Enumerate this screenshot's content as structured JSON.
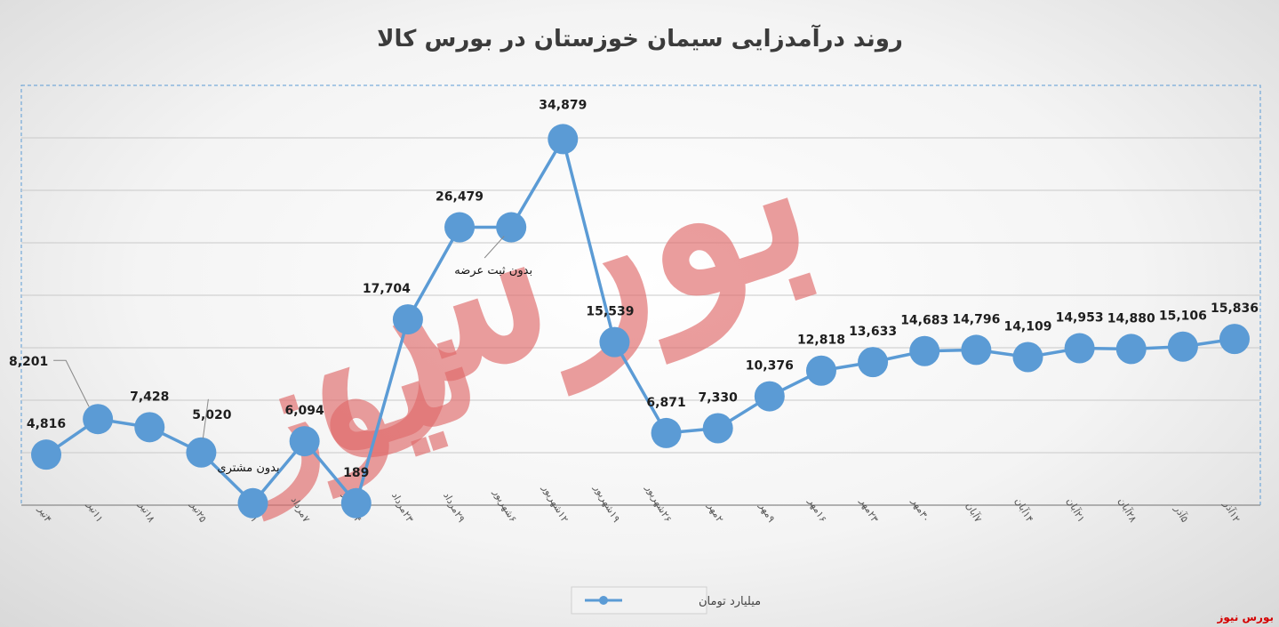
{
  "colors": {
    "series": "#5b9bd5",
    "marker": "#5b9bd5",
    "watermark": "#e06a6a",
    "brand": "#d40000"
  },
  "chart_data": {
    "type": "line",
    "title": "روند درآمدزایی سیمان خوزستان در بورس کالا",
    "categories": [
      "۴تیر",
      "۱۱تیر",
      "۱۸تیر",
      "۲۵تیر",
      "۳۱تیر",
      "۷مرداد",
      "۱۴مرداد",
      "۲۳مرداد",
      "۲۹مرداد",
      "۶شهریور",
      "۱۲شهریور",
      "۱۹شهریور",
      "۲۶شهریور",
      "۲مهر",
      "۹مهر",
      "۱۶مهر",
      "۲۳مهر",
      "۳۰مهر",
      "۷آبان",
      "۱۴آبان",
      "۲۱آبان",
      "۲۸آبان",
      "۵آذر",
      "۱۲آذر"
    ],
    "series": [
      {
        "name": "میلیارد تومان",
        "values": [
          4816,
          8201,
          7428,
          5020,
          189,
          6094,
          189,
          17704,
          26479,
          26479,
          34879,
          15539,
          6871,
          7330,
          10376,
          12818,
          13633,
          14683,
          14796,
          14109,
          14953,
          14880,
          15106,
          15836
        ],
        "data_labels": [
          "4,816",
          "8,201",
          "7,428",
          "5,020",
          "",
          "6,094",
          "189",
          "17,704",
          "26,479",
          "",
          "34,879",
          "15,539",
          "6,871",
          "7,330",
          "10,376",
          "12,818",
          "13,633",
          "14,683",
          "14,796",
          "14,109",
          "14,953",
          "14,880",
          "15,106",
          "15,836"
        ]
      }
    ],
    "ylim": [
      0,
      40000
    ],
    "grid": true,
    "legend": "bottom-center",
    "annotations": [
      {
        "text": "بدون مشتری",
        "category_index": 4
      },
      {
        "text": "بدون ثبت عرضه",
        "category_index": 9
      }
    ]
  },
  "watermark": {
    "line1": "بورس",
    "line2": "نیوز"
  },
  "brand": "بورس نیوز"
}
